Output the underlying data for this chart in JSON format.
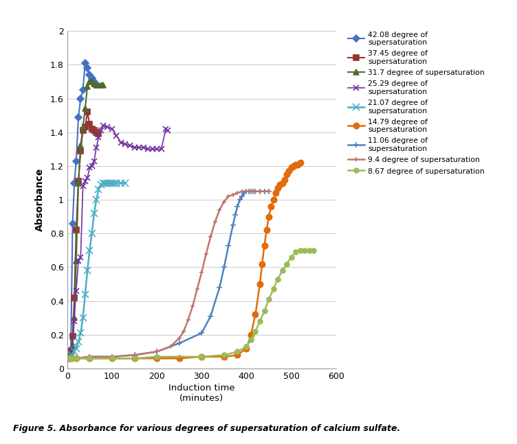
{
  "xlabel": "Induction time\n(minutes)",
  "ylabel": "Absorbance",
  "xlim": [
    0,
    600
  ],
  "ylim": [
    0,
    2
  ],
  "xticks": [
    0,
    100,
    200,
    300,
    400,
    500,
    600
  ],
  "yticks": [
    0,
    0.2,
    0.4,
    0.6,
    0.8,
    1.0,
    1.2,
    1.4,
    1.6,
    1.8,
    2.0
  ],
  "caption": "Figure 5. Absorbance for various degrees of supersaturation of calcium sulfate.",
  "series": [
    {
      "label": "42.08 degree of\nsupersaturation",
      "color": "#4472C4",
      "marker": "D",
      "markersize": 5,
      "linewidth": 1.5,
      "x": [
        2,
        5,
        8,
        12,
        16,
        20,
        25,
        30,
        35,
        40,
        45,
        50,
        55,
        60
      ],
      "y": [
        0.06,
        0.07,
        0.09,
        0.86,
        1.1,
        1.23,
        1.49,
        1.6,
        1.65,
        1.81,
        1.78,
        1.74,
        1.72,
        1.7
      ]
    },
    {
      "label": "37.45 degree of\nsupersaturation",
      "color": "#943634",
      "marker": "s",
      "markersize": 6,
      "linewidth": 1.5,
      "x": [
        2,
        5,
        8,
        12,
        16,
        20,
        25,
        30,
        35,
        40,
        45,
        50,
        55,
        60,
        65,
        70
      ],
      "y": [
        0.06,
        0.07,
        0.1,
        0.19,
        0.42,
        0.82,
        1.11,
        1.29,
        1.41,
        1.43,
        1.52,
        1.45,
        1.42,
        1.41,
        1.4,
        1.39
      ]
    },
    {
      "label": "31.7 degree of supersaturation",
      "color": "#4E6B30",
      "marker": "^",
      "markersize": 6,
      "linewidth": 1.5,
      "x": [
        2,
        5,
        8,
        12,
        16,
        20,
        25,
        30,
        35,
        40,
        45,
        50,
        55,
        60,
        65,
        70,
        75,
        80
      ],
      "y": [
        0.06,
        0.07,
        0.1,
        0.14,
        0.3,
        0.64,
        1.1,
        1.32,
        1.43,
        1.54,
        1.67,
        1.7,
        1.7,
        1.69,
        1.68,
        1.68,
        1.68,
        1.68
      ]
    },
    {
      "label": "25.29 degree of\nsupersaturation",
      "color": "#7030A0",
      "marker": "x",
      "markersize": 6,
      "linewidth": 1.2,
      "x": [
        2,
        5,
        10,
        15,
        20,
        25,
        30,
        35,
        40,
        45,
        50,
        55,
        60,
        65,
        70,
        75,
        80,
        90,
        100,
        110,
        120,
        130,
        140,
        150,
        160,
        170,
        180,
        190,
        200,
        210,
        220,
        225
      ],
      "y": [
        0.06,
        0.07,
        0.11,
        0.28,
        0.46,
        0.64,
        0.66,
        1.08,
        1.11,
        1.13,
        1.19,
        1.2,
        1.23,
        1.31,
        1.37,
        1.41,
        1.44,
        1.43,
        1.42,
        1.38,
        1.34,
        1.33,
        1.32,
        1.31,
        1.31,
        1.31,
        1.3,
        1.3,
        1.3,
        1.3,
        1.42,
        1.41
      ]
    },
    {
      "label": "21.07 degree of\nsupersaturation",
      "color": "#4BACC6",
      "marker": "x",
      "markersize": 7,
      "linewidth": 1.8,
      "x": [
        2,
        5,
        10,
        15,
        20,
        25,
        30,
        35,
        40,
        45,
        50,
        55,
        60,
        65,
        70,
        75,
        80,
        85,
        90,
        95,
        100,
        105,
        110,
        120,
        130
      ],
      "y": [
        0.06,
        0.07,
        0.08,
        0.1,
        0.12,
        0.16,
        0.21,
        0.3,
        0.44,
        0.58,
        0.7,
        0.8,
        0.92,
        1.0,
        1.06,
        1.09,
        1.1,
        1.1,
        1.1,
        1.1,
        1.1,
        1.1,
        1.1,
        1.1,
        1.1
      ]
    },
    {
      "label": "14.79 degree of\nsupersaturation",
      "color": "#E26B0A",
      "marker": "o",
      "markersize": 6,
      "linewidth": 1.8,
      "x": [
        2,
        5,
        10,
        20,
        50,
        100,
        150,
        200,
        250,
        300,
        350,
        380,
        400,
        410,
        420,
        430,
        435,
        440,
        445,
        450,
        455,
        460,
        465,
        470,
        475,
        480,
        485,
        490,
        495,
        500,
        505,
        510,
        515,
        520
      ],
      "y": [
        0.06,
        0.06,
        0.06,
        0.06,
        0.06,
        0.06,
        0.06,
        0.06,
        0.06,
        0.07,
        0.07,
        0.08,
        0.12,
        0.2,
        0.32,
        0.5,
        0.62,
        0.73,
        0.82,
        0.9,
        0.96,
        1.0,
        1.04,
        1.07,
        1.09,
        1.1,
        1.12,
        1.15,
        1.17,
        1.19,
        1.2,
        1.21,
        1.21,
        1.22
      ]
    },
    {
      "label": "11.06 degree of\nsupersaturation",
      "color": "#4F81BD",
      "marker": "+",
      "markersize": 6,
      "linewidth": 1.8,
      "x": [
        2,
        5,
        10,
        20,
        50,
        100,
        150,
        200,
        250,
        300,
        320,
        340,
        350,
        360,
        370,
        375,
        380,
        385,
        390,
        395,
        400,
        405,
        410,
        415,
        420,
        430,
        440,
        450
      ],
      "y": [
        0.06,
        0.06,
        0.06,
        0.06,
        0.07,
        0.07,
        0.08,
        0.1,
        0.15,
        0.21,
        0.31,
        0.48,
        0.6,
        0.73,
        0.85,
        0.91,
        0.96,
        1.0,
        1.02,
        1.04,
        1.05,
        1.05,
        1.05,
        1.05,
        1.05,
        1.05,
        1.05,
        1.05
      ]
    },
    {
      "label": "9.4 degree of supersaturation",
      "color": "#C0756A",
      "marker": "+",
      "markersize": 5,
      "linewidth": 1.8,
      "x": [
        2,
        5,
        10,
        20,
        50,
        100,
        150,
        200,
        230,
        250,
        260,
        270,
        280,
        290,
        300,
        310,
        320,
        330,
        340,
        350,
        360,
        370,
        380,
        390,
        400,
        410,
        420,
        430,
        440,
        450
      ],
      "y": [
        0.06,
        0.06,
        0.06,
        0.06,
        0.07,
        0.07,
        0.08,
        0.1,
        0.13,
        0.18,
        0.22,
        0.29,
        0.37,
        0.47,
        0.57,
        0.68,
        0.78,
        0.87,
        0.94,
        0.99,
        1.02,
        1.03,
        1.04,
        1.05,
        1.05,
        1.05,
        1.05,
        1.05,
        1.05,
        1.05
      ]
    },
    {
      "label": "8.67 degree of supersaturation",
      "color": "#9BBB59",
      "marker": "o",
      "markersize": 5,
      "linewidth": 1.8,
      "x": [
        2,
        5,
        10,
        20,
        50,
        100,
        150,
        200,
        300,
        350,
        380,
        400,
        410,
        420,
        430,
        440,
        450,
        460,
        470,
        480,
        490,
        500,
        510,
        520,
        530,
        540,
        550
      ],
      "y": [
        0.06,
        0.06,
        0.06,
        0.06,
        0.06,
        0.06,
        0.06,
        0.07,
        0.07,
        0.08,
        0.1,
        0.13,
        0.17,
        0.22,
        0.28,
        0.34,
        0.41,
        0.47,
        0.53,
        0.58,
        0.62,
        0.66,
        0.69,
        0.7,
        0.7,
        0.7,
        0.7
      ]
    }
  ]
}
